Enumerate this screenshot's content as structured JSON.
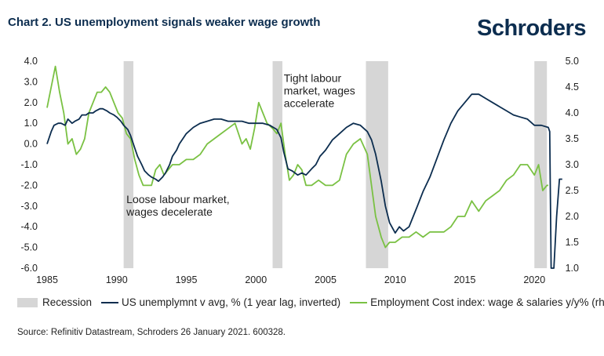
{
  "title": "Chart 2. US unemployment signals weaker wage growth",
  "brand": "Schroders",
  "source": "Source: Refinitiv Datastream, Schroders 26 January 2021. 600328.",
  "colors": {
    "navy": "#0c2d4f",
    "green": "#7ac143",
    "recession": "#d6d6d6"
  },
  "chart_data": {
    "type": "line",
    "xlim": [
      1985,
      2022.3
    ],
    "x_ticks": [
      1985,
      1990,
      1995,
      2000,
      2005,
      2010,
      2015,
      2020
    ],
    "y_left": {
      "lim": [
        -6.0,
        4.0
      ],
      "ticks": [
        "4.0",
        "3.0",
        "2.0",
        "1.0",
        "0.0",
        "-1.0",
        "-2.0",
        "-3.0",
        "-4.0",
        "-5.0",
        "-6.0"
      ]
    },
    "y_right": {
      "lim": [
        1.0,
        5.0
      ],
      "ticks": [
        "5.0",
        "4.5",
        "4.0",
        "3.5",
        "3.0",
        "2.5",
        "2.0",
        "1.5",
        "1.0"
      ]
    },
    "recessions": [
      [
        1990.5,
        1991.2
      ],
      [
        2001.2,
        2001.9
      ],
      [
        2007.9,
        2009.5
      ],
      [
        2020.0,
        2020.9
      ]
    ],
    "annotations": [
      {
        "lines": [
          "Tight labour",
          "market, wages",
          "accelerate"
        ],
        "x": 2002.0,
        "y": 3.0
      },
      {
        "lines": [
          "Loose labour market,",
          "wages decelerate"
        ],
        "x": 1990.7,
        "y": -2.85
      }
    ],
    "legend": [
      {
        "type": "box",
        "label": "Recession"
      },
      {
        "type": "line",
        "series": 0,
        "label": "US unemplymnt v avg, % (1 year lag, inverted)"
      },
      {
        "type": "line",
        "series": 1,
        "label": "Employment Cost index: wage & salaries y/y% (rhs)"
      }
    ],
    "series": [
      {
        "axis": "left",
        "color": "#0c2d4f",
        "x": [
          1985.0,
          1985.3,
          1985.5,
          1985.8,
          1986.0,
          1986.3,
          1986.5,
          1986.8,
          1987.0,
          1987.3,
          1987.5,
          1987.8,
          1988.0,
          1988.3,
          1988.5,
          1988.8,
          1989.0,
          1989.3,
          1989.5,
          1989.8,
          1990.0,
          1990.3,
          1990.5,
          1990.8,
          1991.0,
          1991.3,
          1991.5,
          1991.8,
          1992.0,
          1992.3,
          1992.5,
          1992.8,
          1993.0,
          1993.3,
          1993.5,
          1993.8,
          1994.0,
          1994.3,
          1994.5,
          1994.8,
          1995.0,
          1995.5,
          1996.0,
          1996.5,
          1997.0,
          1997.5,
          1998.0,
          1998.5,
          1999.0,
          1999.5,
          2000.0,
          2000.5,
          2001.0,
          2001.5,
          2001.8,
          2002.0,
          2002.3,
          2002.6,
          2003.0,
          2003.3,
          2003.6,
          2004.0,
          2004.3,
          2004.6,
          2005.0,
          2005.5,
          2006.0,
          2006.5,
          2007.0,
          2007.5,
          2008.0,
          2008.3,
          2008.6,
          2009.0,
          2009.3,
          2009.6,
          2010.0,
          2010.3,
          2010.6,
          2011.0,
          2011.3,
          2011.6,
          2012.0,
          2012.5,
          2013.0,
          2013.5,
          2014.0,
          2014.5,
          2015.0,
          2015.5,
          2016.0,
          2016.5,
          2017.0,
          2017.5,
          2018.0,
          2018.5,
          2019.0,
          2019.5,
          2020.0,
          2020.5,
          2021.0,
          2021.1,
          2021.2,
          2021.3,
          2021.4,
          2021.6,
          2021.8,
          2022.0
        ],
        "y": [
          0.0,
          0.6,
          0.9,
          1.0,
          1.0,
          0.9,
          1.2,
          1.0,
          1.1,
          1.2,
          1.4,
          1.4,
          1.5,
          1.5,
          1.6,
          1.7,
          1.7,
          1.6,
          1.5,
          1.4,
          1.3,
          1.1,
          0.9,
          0.7,
          0.4,
          -0.2,
          -0.6,
          -1.0,
          -1.3,
          -1.5,
          -1.6,
          -1.7,
          -1.8,
          -1.6,
          -1.4,
          -1.0,
          -0.6,
          -0.3,
          0.0,
          0.3,
          0.5,
          0.8,
          1.0,
          1.1,
          1.2,
          1.2,
          1.1,
          1.1,
          1.1,
          1.0,
          1.0,
          1.0,
          0.9,
          0.7,
          0.3,
          -0.4,
          -1.2,
          -1.3,
          -1.5,
          -1.4,
          -1.5,
          -1.2,
          -1.0,
          -0.6,
          -0.3,
          0.2,
          0.5,
          0.8,
          1.0,
          0.9,
          0.6,
          0.2,
          -0.5,
          -1.8,
          -3.0,
          -3.8,
          -4.3,
          -4.0,
          -4.2,
          -4.0,
          -3.5,
          -3.0,
          -2.3,
          -1.6,
          -0.7,
          0.2,
          1.0,
          1.6,
          2.0,
          2.4,
          2.4,
          2.2,
          2.0,
          1.8,
          1.6,
          1.4,
          1.3,
          1.2,
          0.9,
          0.9,
          0.8,
          0.6,
          -6.0,
          -6.3,
          -6.3,
          -3.5,
          -1.7,
          -1.7
        ]
      },
      {
        "axis": "right",
        "color": "#7ac143",
        "x": [
          1985.0,
          1985.3,
          1985.6,
          1985.9,
          1986.2,
          1986.5,
          1986.8,
          1987.1,
          1987.4,
          1987.7,
          1988.0,
          1988.3,
          1988.6,
          1988.9,
          1989.2,
          1989.5,
          1989.8,
          1990.1,
          1990.4,
          1990.7,
          1991.0,
          1991.3,
          1991.6,
          1991.9,
          1992.2,
          1992.5,
          1992.8,
          1993.1,
          1993.4,
          1993.7,
          1994.0,
          1994.5,
          1995.0,
          1995.5,
          1996.0,
          1996.5,
          1997.0,
          1997.5,
          1998.0,
          1998.5,
          1999.0,
          1999.3,
          1999.6,
          1999.9,
          2000.2,
          2000.5,
          2000.8,
          2001.2,
          2001.5,
          2001.8,
          2002.1,
          2002.4,
          2002.7,
          2003.0,
          2003.3,
          2003.6,
          2004.0,
          2004.5,
          2005.0,
          2005.5,
          2006.0,
          2006.5,
          2007.0,
          2007.5,
          2008.0,
          2008.3,
          2008.6,
          2009.0,
          2009.3,
          2009.6,
          2010.0,
          2010.5,
          2011.0,
          2011.5,
          2012.0,
          2012.5,
          2013.0,
          2013.5,
          2014.0,
          2014.5,
          2015.0,
          2015.5,
          2016.0,
          2016.5,
          2017.0,
          2017.5,
          2018.0,
          2018.5,
          2019.0,
          2019.5,
          2020.0,
          2020.3,
          2020.6,
          2020.9,
          2021.0
        ],
        "y": [
          4.1,
          4.5,
          4.9,
          4.4,
          4.0,
          3.4,
          3.5,
          3.2,
          3.3,
          3.5,
          4.0,
          4.2,
          4.4,
          4.4,
          4.5,
          4.4,
          4.2,
          4.0,
          3.9,
          3.6,
          3.5,
          3.1,
          2.8,
          2.6,
          2.6,
          2.6,
          2.9,
          3.0,
          2.8,
          2.9,
          3.0,
          3.0,
          3.1,
          3.1,
          3.2,
          3.4,
          3.5,
          3.6,
          3.7,
          3.8,
          3.4,
          3.5,
          3.3,
          3.7,
          4.2,
          4.0,
          3.8,
          3.7,
          3.6,
          3.8,
          3.2,
          2.7,
          2.8,
          3.0,
          2.9,
          2.6,
          2.6,
          2.7,
          2.6,
          2.6,
          2.7,
          3.2,
          3.4,
          3.5,
          3.2,
          2.6,
          2.0,
          1.6,
          1.4,
          1.5,
          1.5,
          1.6,
          1.6,
          1.7,
          1.6,
          1.7,
          1.7,
          1.7,
          1.8,
          2.0,
          2.0,
          2.3,
          2.1,
          2.3,
          2.4,
          2.5,
          2.7,
          2.8,
          3.0,
          3.0,
          2.8,
          3.0,
          2.5,
          2.6,
          2.6
        ]
      }
    ]
  }
}
